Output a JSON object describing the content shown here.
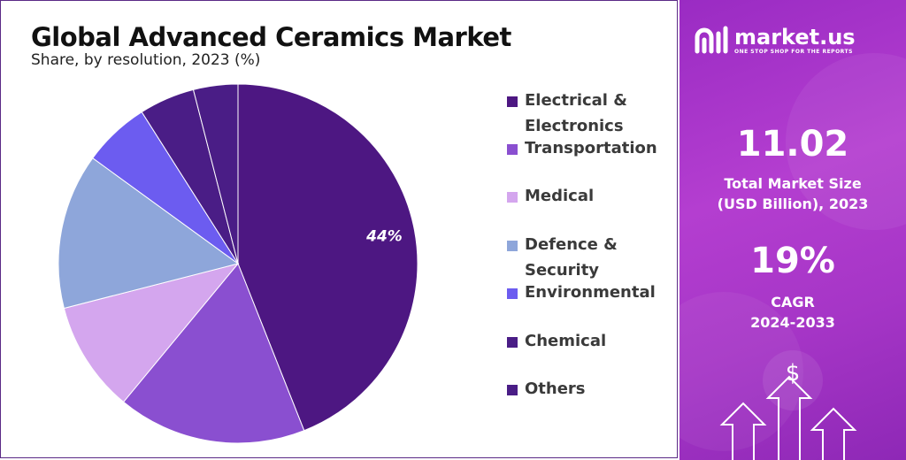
{
  "header": {
    "title": "Global Advanced Ceramics Market",
    "subtitle": "Share, by resolution, 2023 (%)"
  },
  "chart_data": {
    "type": "pie",
    "title": "Global Advanced Ceramics Market",
    "subtitle": "Share, by resolution, 2023 (%)",
    "slices": [
      {
        "label": "Electrical & Electronics",
        "value": 44,
        "color": "#4d1782",
        "data_label": "44%"
      },
      {
        "label": "Transportation",
        "value": 17,
        "color": "#8a4fd0",
        "data_label": ""
      },
      {
        "label": "Medical",
        "value": 10,
        "color": "#d4a6ee",
        "data_label": ""
      },
      {
        "label": "Defence & Security",
        "value": 14,
        "color": "#8ea6da",
        "data_label": ""
      },
      {
        "label": "Environmental",
        "value": 6,
        "color": "#6c5cf0",
        "data_label": ""
      },
      {
        "label": "Chemical",
        "value": 5,
        "color": "#4a1d86",
        "data_label": ""
      },
      {
        "label": "Others",
        "value": 4,
        "color": "#4a1d86",
        "data_label": ""
      }
    ],
    "legend_position": "right"
  },
  "legend": {
    "items": [
      {
        "label_line1": "Electrical &",
        "label_line2": "Electronics",
        "color": "#4d1782"
      },
      {
        "label_line1": "Transportation",
        "label_line2": "",
        "color": "#8a4fd0"
      },
      {
        "label_line1": "Medical",
        "label_line2": "",
        "color": "#d4a6ee"
      },
      {
        "label_line1": "Defence &",
        "label_line2": "Security",
        "color": "#8ea6da"
      },
      {
        "label_line1": "Environmental",
        "label_line2": "",
        "color": "#6c5cf0"
      },
      {
        "label_line1": "Chemical",
        "label_line2": "",
        "color": "#4a1d86"
      },
      {
        "label_line1": "Others",
        "label_line2": "",
        "color": "#4a1d86"
      }
    ]
  },
  "sidebar": {
    "brand_name": "market.us",
    "brand_tagline": "ONE STOP SHOP FOR THE REPORTS",
    "market_size_value": "11.02",
    "market_size_label_line1": "Total Market Size",
    "market_size_label_line2": "(USD Billion), 2023",
    "cagr_value": "19%",
    "cagr_label_line1": "CAGR",
    "cagr_label_line2": "2024-2033",
    "dollar_symbol": "$",
    "accent_color": "#a535c6"
  }
}
